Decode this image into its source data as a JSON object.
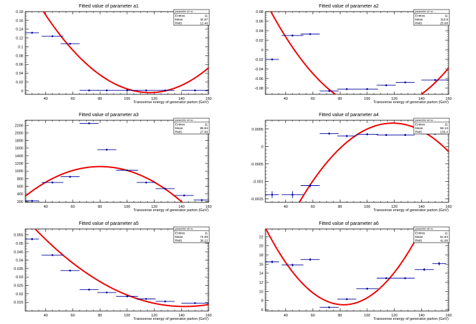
{
  "chart_data": [
    {
      "type": "scatter",
      "title": "Fitted value of parameter a1",
      "xlabel": "Transverse energy of generator parton (GeV)",
      "ylabel": "",
      "xlim": [
        25,
        160
      ],
      "ylim": [
        -0.008,
        0.18
      ],
      "xticks": [
        40,
        60,
        80,
        100,
        120,
        140,
        160
      ],
      "yticks": [
        0,
        0.02,
        0.04,
        0.06,
        0.08,
        0.1,
        0.12,
        0.14,
        0.16,
        0.18
      ],
      "ytick_labels": [
        "0",
        "0.02",
        "0.04",
        "0.06",
        "0.08",
        "0.1",
        "0.12",
        "0.14",
        "0.16",
        "0.18"
      ],
      "points": [
        {
          "x": 30,
          "xerr": 5,
          "y": 0.132,
          "yerr": 0.002
        },
        {
          "x": 45,
          "xerr": 8,
          "y": 0.124,
          "yerr": 0.002
        },
        {
          "x": 58,
          "xerr": 7,
          "y": 0.107,
          "yerr": 0.002
        },
        {
          "x": 72,
          "xerr": 7,
          "y": 0.001,
          "yerr": 0.001
        },
        {
          "x": 85,
          "xerr": 7,
          "y": 0.001,
          "yerr": 0.001
        },
        {
          "x": 100,
          "xerr": 8,
          "y": 0.001,
          "yerr": 0.001
        },
        {
          "x": 114,
          "xerr": 7,
          "y": 0.001,
          "yerr": 0.001
        },
        {
          "x": 128,
          "xerr": 7,
          "y": 0.001,
          "yerr": 0.001
        },
        {
          "x": 150,
          "xerr": 10,
          "y": 0.001,
          "yerr": 0.001
        }
      ],
      "fit": {
        "type": "quadratic",
        "coeffs": [
          0.4043,
          -0.007,
          3e-05
        ]
      },
      "stats": {
        "name": "parameter a1 vs ...",
        "rows": [
          [
            "Entries",
            "11"
          ],
          [
            "Mean",
            "44.67"
          ],
          [
            "RMS",
            "12.46"
          ]
        ]
      }
    },
    {
      "type": "scatter",
      "title": "Fitted value of parameter a2",
      "xlabel": "Transverse energy of generator parton (GeV)",
      "ylabel": "",
      "xlim": [
        25,
        160
      ],
      "ylim": [
        -0.093,
        0.08
      ],
      "xticks": [
        40,
        60,
        80,
        100,
        120,
        140,
        160
      ],
      "yticks": [
        0.08,
        0.06,
        0.04,
        0.02,
        0,
        -0.02,
        -0.04,
        -0.06,
        -0.08
      ],
      "ytick_labels": [
        "0.08",
        "0.06",
        "0.04",
        "0.02",
        "0",
        "-0.02",
        "-0.04",
        "-0.06",
        "-0.08"
      ],
      "points": [
        {
          "x": 30,
          "xerr": 5,
          "y": -0.02,
          "yerr": 0.002
        },
        {
          "x": 45,
          "xerr": 8,
          "y": 0.03,
          "yerr": 0.002
        },
        {
          "x": 58,
          "xerr": 7,
          "y": 0.033,
          "yerr": 0.002
        },
        {
          "x": 72,
          "xerr": 7,
          "y": -0.086,
          "yerr": 0.002
        },
        {
          "x": 85,
          "xerr": 7,
          "y": -0.082,
          "yerr": 0.002
        },
        {
          "x": 100,
          "xerr": 8,
          "y": -0.082,
          "yerr": 0.002
        },
        {
          "x": 114,
          "xerr": 7,
          "y": -0.074,
          "yerr": 0.002
        },
        {
          "x": 128,
          "xerr": 7,
          "y": -0.068,
          "yerr": 0.002
        },
        {
          "x": 150,
          "xerr": 10,
          "y": -0.063,
          "yerr": 0.002
        }
      ],
      "fit": {
        "type": "quadratic",
        "coeffs": [
          0.2592,
          -0.00712,
          3.29e-05
        ]
      },
      "stats": {
        "name": "parameter a2 vs ...",
        "rows": [
          [
            "Entries",
            "11"
          ],
          [
            "Mean",
            "113.8"
          ],
          [
            "RMS",
            "25.68"
          ]
        ]
      }
    },
    {
      "type": "scatter",
      "title": "Fitted value of parameter a3",
      "xlabel": "Transverse energy of generator parton (GeV)",
      "ylabel": "",
      "xlim": [
        25,
        160
      ],
      "ylim": [
        180,
        2330
      ],
      "xticks": [
        40,
        60,
        80,
        100,
        120,
        140,
        160
      ],
      "yticks": [
        200,
        400,
        600,
        800,
        1000,
        1200,
        1400,
        1600,
        1800,
        2000,
        2200
      ],
      "ytick_labels": [
        "200",
        "400",
        "600",
        "800",
        "1000",
        "1200",
        "1400",
        "1600",
        "1800",
        "2000",
        "2200"
      ],
      "points": [
        {
          "x": 30,
          "xerr": 5,
          "y": 220,
          "yerr": 8
        },
        {
          "x": 45,
          "xerr": 8,
          "y": 700,
          "yerr": 8
        },
        {
          "x": 58,
          "xerr": 7,
          "y": 850,
          "yerr": 10
        },
        {
          "x": 72,
          "xerr": 7,
          "y": 2250,
          "yerr": 15
        },
        {
          "x": 85,
          "xerr": 7,
          "y": 1560,
          "yerr": 12
        },
        {
          "x": 100,
          "xerr": 8,
          "y": 1020,
          "yerr": 10
        },
        {
          "x": 114,
          "xerr": 7,
          "y": 700,
          "yerr": 8
        },
        {
          "x": 128,
          "xerr": 7,
          "y": 540,
          "yerr": 8
        },
        {
          "x": 142,
          "xerr": 7,
          "y": 360,
          "yerr": 8
        },
        {
          "x": 155,
          "xerr": 6,
          "y": 240,
          "yerr": 8
        }
      ],
      "fit": {
        "type": "quadratic",
        "coeffs": [
          -524,
          41,
          -0.256
        ]
      },
      "stats": {
        "name": "parameter a3 vs ...",
        "rows": [
          [
            "Entries",
            "11"
          ],
          [
            "Mean",
            "85.84"
          ],
          [
            "RMS",
            "27.89"
          ]
        ]
      }
    },
    {
      "type": "scatter",
      "title": "Fitted value of parameter a4",
      "xlabel": "Transverse energy of generator parton (GeV)",
      "ylabel": "",
      "xlim": [
        25,
        160
      ],
      "ylim": [
        -0.0016,
        0.00075
      ],
      "xticks": [
        40,
        60,
        80,
        100,
        120,
        140,
        160
      ],
      "yticks": [
        0.0005,
        0,
        -0.0005,
        -0.001,
        -0.0015
      ],
      "ytick_labels": [
        "0.0005",
        "0",
        "-0.0005",
        "-0.001",
        "-0.0015"
      ],
      "points": [
        {
          "x": 30,
          "xerr": 5,
          "y": -0.00138,
          "yerr": 0.0001
        },
        {
          "x": 45,
          "xerr": 8,
          "y": -0.00138,
          "yerr": 0.0001
        },
        {
          "x": 58,
          "xerr": 7,
          "y": -0.00112,
          "yerr": 5e-05
        },
        {
          "x": 72,
          "xerr": 7,
          "y": 0.00037,
          "yerr": 3e-05
        },
        {
          "x": 85,
          "xerr": 7,
          "y": 0.0003,
          "yerr": 3e-05
        },
        {
          "x": 100,
          "xerr": 8,
          "y": 0.00035,
          "yerr": 3e-05
        },
        {
          "x": 114,
          "xerr": 7,
          "y": 0.00033,
          "yerr": 3e-05
        },
        {
          "x": 128,
          "xerr": 7,
          "y": 0.00033,
          "yerr": 3e-05
        },
        {
          "x": 150,
          "xerr": 10,
          "y": 0.00036,
          "yerr": 3e-05
        }
      ],
      "fit": {
        "type": "quadratic",
        "coeffs": [
          -0.0061,
          0.000114,
          -4.8e-07
        ]
      },
      "stats": {
        "name": "parameter a4 vs ...",
        "rows": [
          [
            "Entries",
            "11"
          ],
          [
            "Mean",
            "59.13"
          ],
          [
            "RMS",
            "136.4"
          ]
        ]
      }
    },
    {
      "type": "scatter",
      "title": "Fitted value of parameter a5",
      "xlabel": "Transverse energy of generator parton (GeV)",
      "ylabel": "",
      "xlim": [
        25,
        160
      ],
      "ylim": [
        0.0098,
        0.0585
      ],
      "xticks": [
        40,
        60,
        80,
        100,
        120,
        140,
        160
      ],
      "yticks": [
        0.015,
        0.02,
        0.025,
        0.03,
        0.035,
        0.04,
        0.045,
        0.05,
        0.055
      ],
      "ytick_labels": [
        "0.015",
        "0.02",
        "0.025",
        "0.03",
        "0.035",
        "0.04",
        "0.045",
        "0.05",
        "0.055"
      ],
      "points": [
        {
          "x": 30,
          "xerr": 5,
          "y": 0.0525,
          "yerr": 0.0007
        },
        {
          "x": 45,
          "xerr": 8,
          "y": 0.043,
          "yerr": 0.0005
        },
        {
          "x": 58,
          "xerr": 7,
          "y": 0.0338,
          "yerr": 0.0004
        },
        {
          "x": 72,
          "xerr": 7,
          "y": 0.0225,
          "yerr": 0.0003
        },
        {
          "x": 85,
          "xerr": 7,
          "y": 0.0208,
          "yerr": 0.0003
        },
        {
          "x": 100,
          "xerr": 8,
          "y": 0.0185,
          "yerr": 0.0003
        },
        {
          "x": 114,
          "xerr": 7,
          "y": 0.017,
          "yerr": 0.0003
        },
        {
          "x": 128,
          "xerr": 7,
          "y": 0.0155,
          "yerr": 0.0003
        },
        {
          "x": 150,
          "xerr": 10,
          "y": 0.0145,
          "yerr": 0.0003
        }
      ],
      "fit": {
        "type": "quadratic",
        "coeffs": [
          0.0895,
          -0.001082,
          3.8e-06
        ]
      },
      "stats": {
        "name": "parameter a5 vs ...",
        "rows": [
          [
            "Entries",
            "11"
          ],
          [
            "Mean",
            "74.68"
          ],
          [
            "RMS",
            "38.22"
          ]
        ]
      }
    },
    {
      "type": "scatter",
      "title": "Fitted value of parameter a6",
      "xlabel": "Transverse energy of generator parton (GeV)",
      "ylabel": "",
      "xlim": [
        25,
        160
      ],
      "ylim": [
        5.7,
        23.7
      ],
      "xticks": [
        40,
        60,
        80,
        100,
        120,
        140,
        160
      ],
      "yticks": [
        6,
        8,
        10,
        12,
        14,
        16,
        18,
        20,
        22
      ],
      "ytick_labels": [
        "6",
        "8",
        "10",
        "12",
        "14",
        "16",
        "18",
        "20",
        "22"
      ],
      "points": [
        {
          "x": 30,
          "xerr": 5,
          "y": 16.5,
          "yerr": 0.3
        },
        {
          "x": 45,
          "xerr": 8,
          "y": 15.8,
          "yerr": 0.3
        },
        {
          "x": 58,
          "xerr": 7,
          "y": 17,
          "yerr": 0.3
        },
        {
          "x": 72,
          "xerr": 7,
          "y": 6.5,
          "yerr": 0.2
        },
        {
          "x": 85,
          "xerr": 7,
          "y": 8.3,
          "yerr": 0.2
        },
        {
          "x": 100,
          "xerr": 8,
          "y": 10.6,
          "yerr": 0.2
        },
        {
          "x": 114,
          "xerr": 7,
          "y": 12.9,
          "yerr": 0.2
        },
        {
          "x": 128,
          "xerr": 7,
          "y": 12.9,
          "yerr": 0.2
        },
        {
          "x": 142,
          "xerr": 7,
          "y": 14.8,
          "yerr": 0.3
        },
        {
          "x": 153,
          "xerr": 5,
          "y": 16.1,
          "yerr": 0.4
        }
      ],
      "fit": {
        "type": "quadratic",
        "coeffs": [
          41.8,
          -0.84,
          0.00508
        ]
      },
      "stats": {
        "name": "parameter a6 vs ...",
        "rows": [
          [
            "Entries",
            "11"
          ],
          [
            "Mean",
            "91.84"
          ],
          [
            "RMS",
            "41.88"
          ]
        ]
      }
    }
  ],
  "colors": {
    "background": "#ffffff",
    "frame": "#000000",
    "fit_line": "#ee0000",
    "markers": "#000099"
  }
}
